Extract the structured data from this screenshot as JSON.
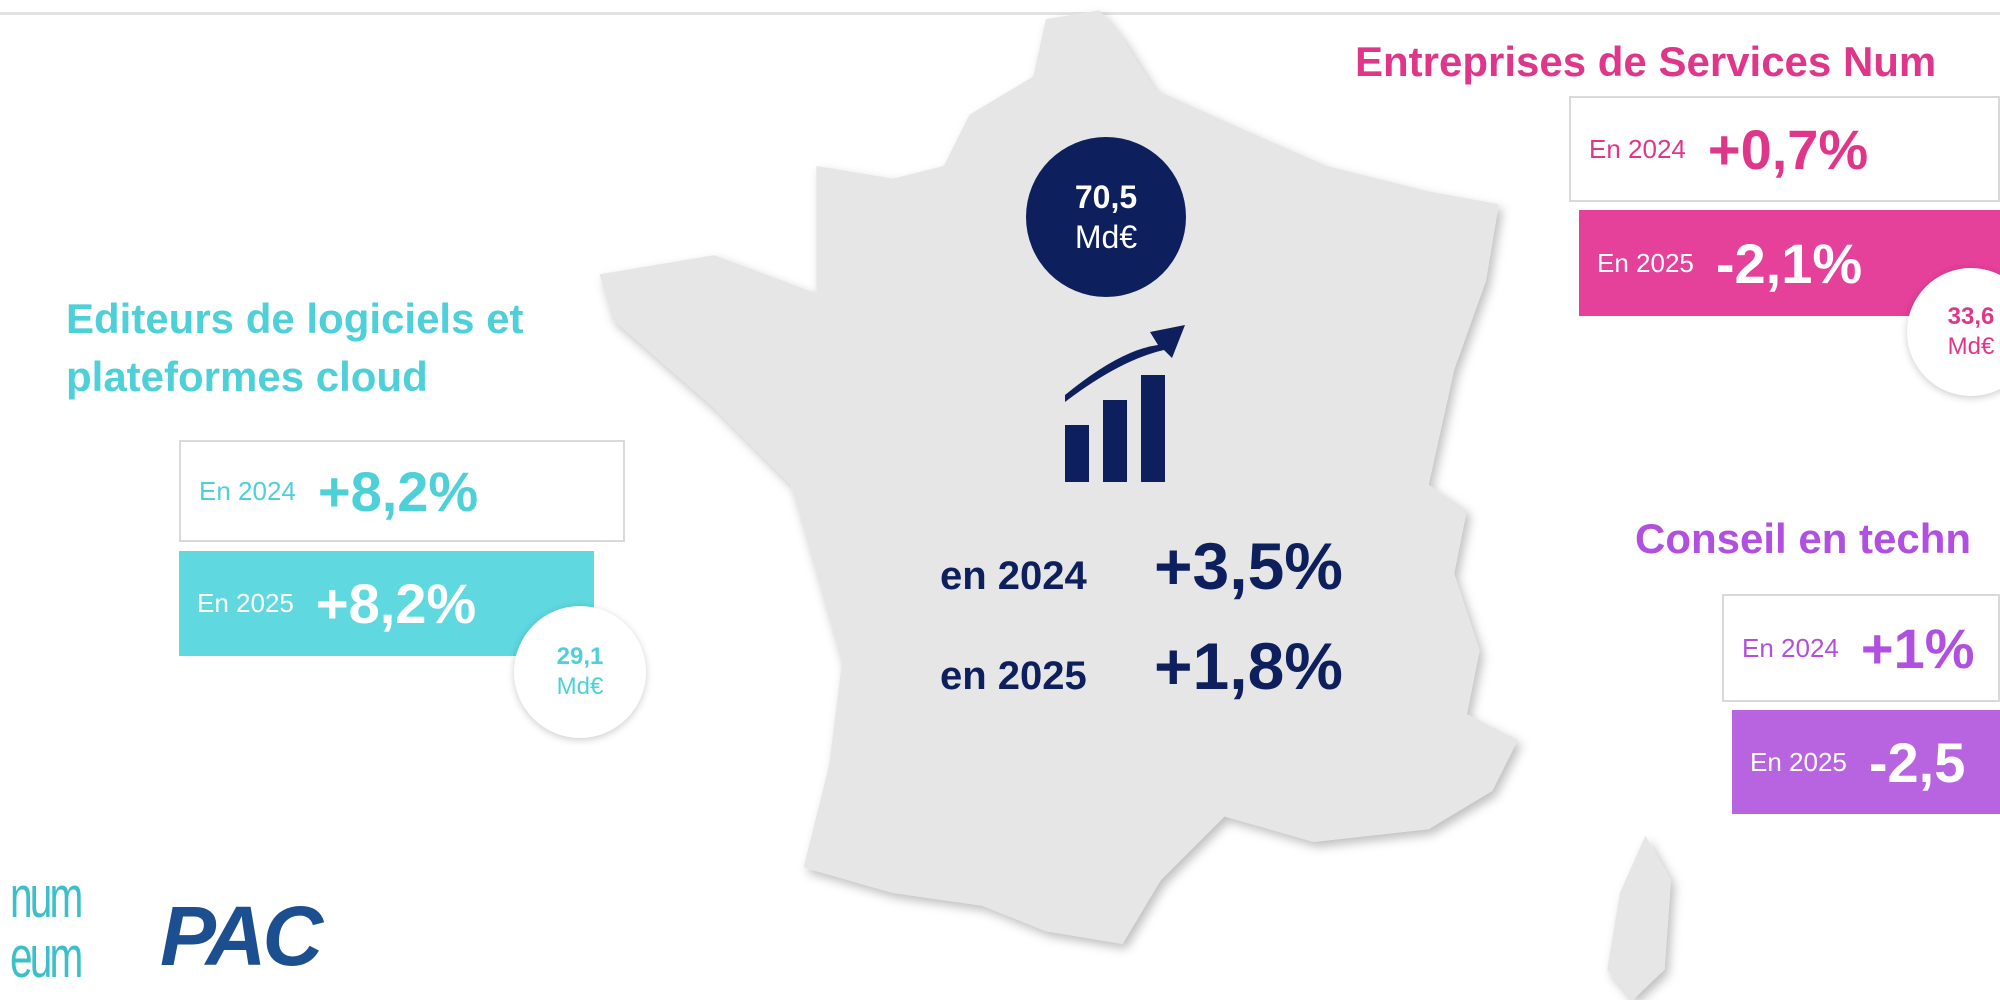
{
  "center": {
    "total_value": "70,5",
    "total_unit": "Md€",
    "rows": [
      {
        "label": "en 2024",
        "value": "+3,5%"
      },
      {
        "label": "en 2025",
        "value": "+1,8%"
      }
    ]
  },
  "segments": [
    {
      "title_lines": [
        "Editeurs de logiciels et",
        "plateformes cloud"
      ],
      "rows": [
        {
          "label": "En 2024",
          "value": "+8,2%"
        },
        {
          "label": "En 2025",
          "value": "+8,2%"
        }
      ],
      "size_value": "29,1",
      "size_unit": "Md€"
    },
    {
      "title_lines": [
        "Entreprises de Services Num"
      ],
      "rows": [
        {
          "label": "En 2024",
          "value": "+0,7%"
        },
        {
          "label": "En 2025",
          "value": "-2,1%"
        }
      ],
      "size_value": "33,6",
      "size_unit": "Md€"
    },
    {
      "title_lines": [
        "Conseil en techn"
      ],
      "rows": [
        {
          "label": "En 2024",
          "value": "+1%"
        },
        {
          "label": "En 2025",
          "value": "-2,5"
        }
      ]
    }
  ],
  "logos": {
    "numeum_top": "num",
    "numeum_bottom": "eum",
    "pac": "PAC"
  }
}
